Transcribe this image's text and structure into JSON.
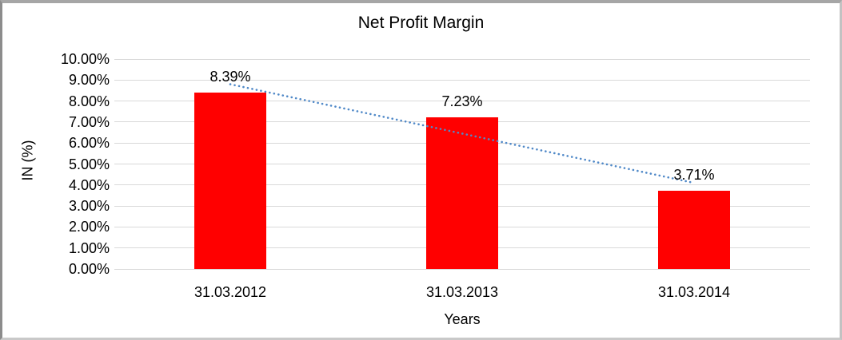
{
  "chart_data": {
    "type": "bar",
    "title": "Net Profit Margin",
    "xlabel": "Years",
    "ylabel": "IN (%)",
    "categories": [
      "31.03.2012",
      "31.03.2013",
      "31.03.2014"
    ],
    "values": [
      8.39,
      7.23,
      3.71
    ],
    "data_labels": [
      "8.39%",
      "7.23%",
      "3.71%"
    ],
    "ylim": [
      0,
      10
    ],
    "ytick_step": 1,
    "ytick_labels": [
      "0.00%",
      "1.00%",
      "2.00%",
      "3.00%",
      "4.00%",
      "5.00%",
      "6.00%",
      "7.00%",
      "8.00%",
      "9.00%",
      "10.00%"
    ],
    "grid": true,
    "legend": "none",
    "bar_color": "#ff0000",
    "trendline": {
      "type": "linear",
      "style": "dotted",
      "color": "#5089c8",
      "start_value": 8.8,
      "end_value": 4.1
    }
  }
}
